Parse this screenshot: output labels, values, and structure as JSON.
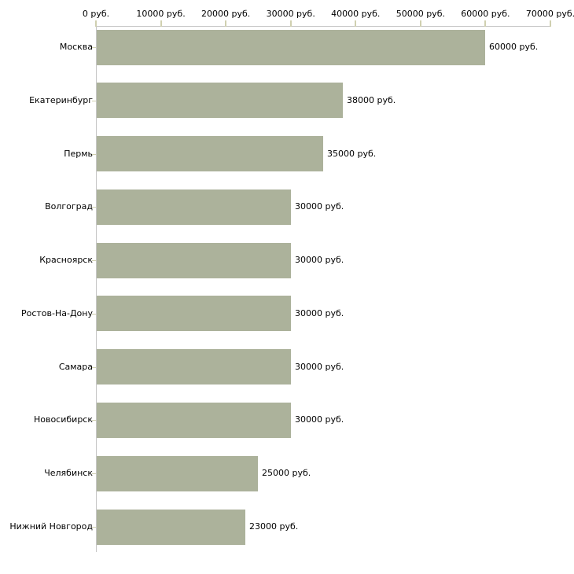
{
  "chart_data": {
    "type": "bar",
    "orientation": "horizontal",
    "title": "",
    "xlabel": "",
    "ylabel": "",
    "unit": "руб.",
    "categories": [
      "Москва",
      "Екатеринбург",
      "Пермь",
      "Волгоград",
      "Красноярск",
      "Ростов-На-Дону",
      "Самара",
      "Новосибирск",
      "Челябинск",
      "Нижний Новгород"
    ],
    "values": [
      60000,
      38000,
      35000,
      30000,
      30000,
      30000,
      30000,
      30000,
      25000,
      23000
    ],
    "bar_labels": [
      "60000 руб.",
      "38000 руб.",
      "35000 руб.",
      "30000 руб.",
      "30000 руб.",
      "30000 руб.",
      "30000 руб.",
      "30000 руб.",
      "25000 руб.",
      "23000 руб."
    ],
    "x_axis": {
      "position": "top",
      "min": 0,
      "max": 70000,
      "ticks": [
        0,
        10000,
        20000,
        30000,
        40000,
        50000,
        60000,
        70000
      ],
      "tick_labels": [
        "0 руб.",
        "10000 руб.",
        "20000 руб.",
        "30000 руб.",
        "40000 руб.",
        "50000 руб.",
        "60000 руб.",
        "70000 руб."
      ]
    },
    "grid": false,
    "legend": false,
    "colors": {
      "bar": "#acb29b",
      "axis_line": "#c6c6c6",
      "tick_mark": "#d0d0b0",
      "text": "#000000",
      "background": "#ffffff"
    }
  }
}
